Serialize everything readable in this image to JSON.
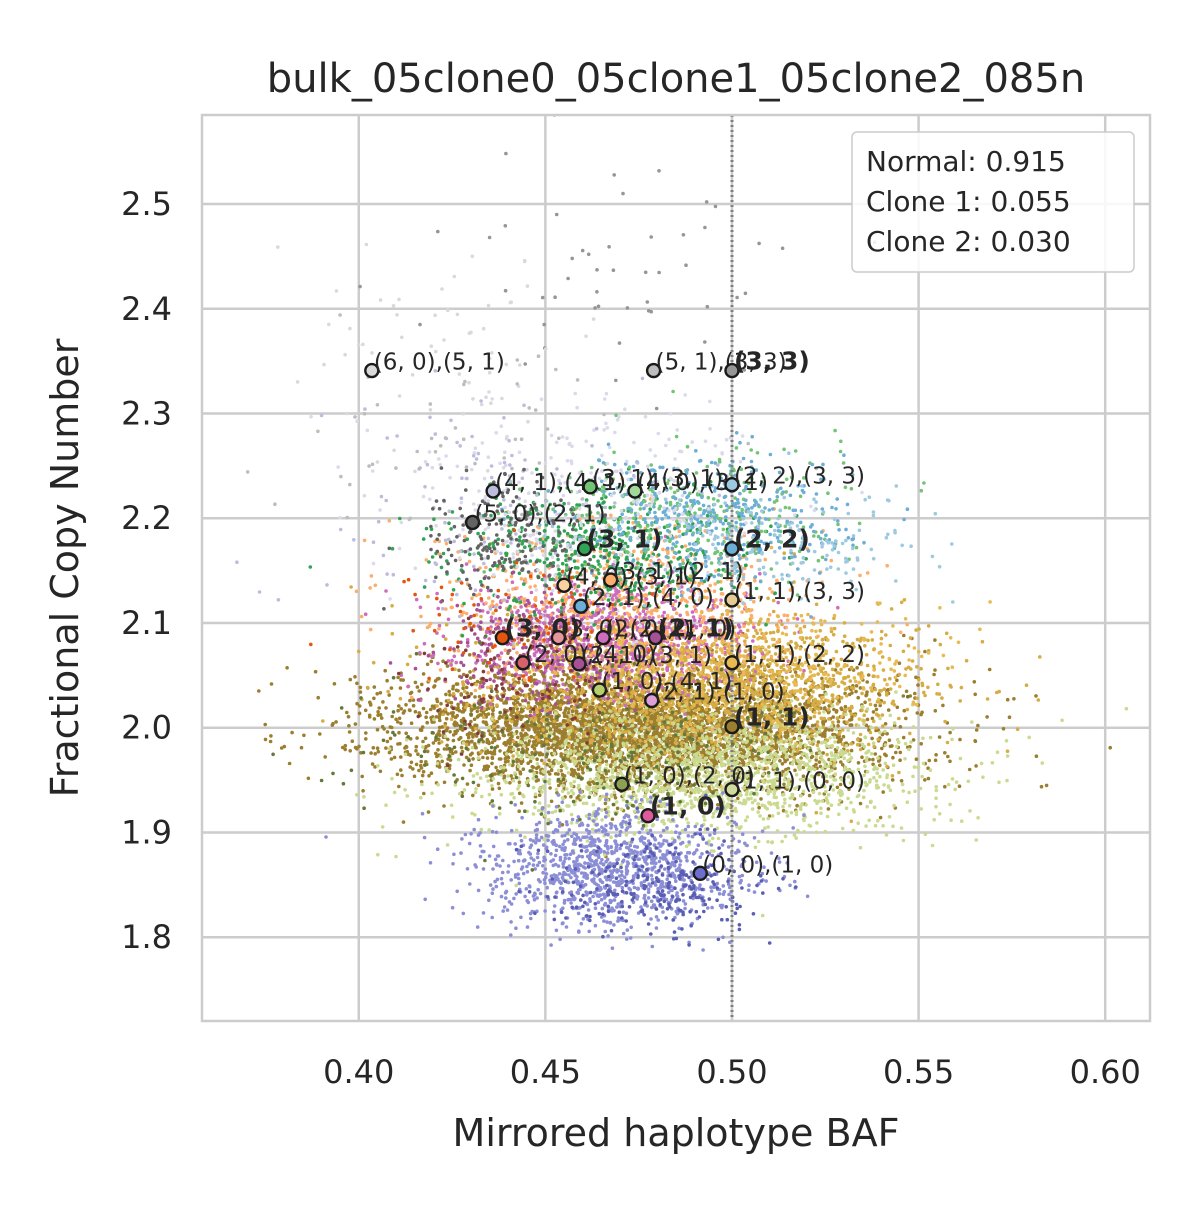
{
  "chart_data": {
    "type": "scatter",
    "title": "bulk_05clone0_05clone1_05clone2_085n",
    "xlabel": "Mirrored haplotype BAF",
    "ylabel": "Fractional Copy Number",
    "xlim": [
      0.358,
      0.612
    ],
    "ylim": [
      1.72,
      2.585
    ],
    "xticks": [
      0.4,
      0.45,
      0.5,
      0.55,
      0.6
    ],
    "xtick_labels": [
      "0.40",
      "0.45",
      "0.50",
      "0.55",
      "0.60"
    ],
    "yticks": [
      1.8,
      1.9,
      2.0,
      2.1,
      2.2,
      2.3,
      2.4,
      2.5
    ],
    "ytick_labels": [
      "1.8",
      "1.9",
      "2.0",
      "2.1",
      "2.2",
      "2.3",
      "2.4",
      "2.5"
    ],
    "grid": true,
    "reference_line": {
      "x": 0.5,
      "style": "dotted",
      "color": "#7f7f7f"
    },
    "legend": {
      "placement": "top-right",
      "entries": [
        "Normal: 0.915",
        "Clone 1: 0.055",
        "Clone 2: 0.030"
      ]
    },
    "clusters": [
      {
        "color": "#9c7f2e",
        "cx": 0.475,
        "cy": 2.0,
        "sx": 0.032,
        "sy": 0.03,
        "n": 4200
      },
      {
        "color": "#d6ad45",
        "cx": 0.49,
        "cy": 2.04,
        "sx": 0.03,
        "sy": 0.035,
        "n": 1700
      },
      {
        "color": "#cadb91",
        "cx": 0.49,
        "cy": 1.955,
        "sx": 0.03,
        "sy": 0.03,
        "n": 1500
      },
      {
        "color": "#8c8fd6",
        "cx": 0.468,
        "cy": 1.865,
        "sx": 0.018,
        "sy": 0.027,
        "n": 1100
      },
      {
        "color": "#5b5fb3",
        "cx": 0.48,
        "cy": 1.85,
        "sx": 0.015,
        "sy": 0.025,
        "n": 250
      },
      {
        "color": "#ce6dbd",
        "cx": 0.465,
        "cy": 2.09,
        "sx": 0.02,
        "sy": 0.028,
        "n": 900
      },
      {
        "color": "#fdae6b",
        "cx": 0.47,
        "cy": 2.12,
        "sx": 0.025,
        "sy": 0.038,
        "n": 700
      },
      {
        "color": "#e7ba52",
        "cx": 0.5,
        "cy": 2.06,
        "sx": 0.025,
        "sy": 0.03,
        "n": 500
      },
      {
        "color": "#31a354",
        "cx": 0.465,
        "cy": 2.17,
        "sx": 0.02,
        "sy": 0.03,
        "n": 500
      },
      {
        "color": "#74c476",
        "cx": 0.49,
        "cy": 2.2,
        "sx": 0.02,
        "sy": 0.03,
        "n": 300
      },
      {
        "color": "#6baed6",
        "cx": 0.495,
        "cy": 2.2,
        "sx": 0.018,
        "sy": 0.03,
        "n": 400
      },
      {
        "color": "#9ecae1",
        "cx": 0.51,
        "cy": 2.18,
        "sx": 0.02,
        "sy": 0.03,
        "n": 200
      },
      {
        "color": "#dadaeb",
        "cx": 0.46,
        "cy": 2.22,
        "sx": 0.025,
        "sy": 0.05,
        "n": 300
      },
      {
        "color": "#bcbddc",
        "cx": 0.44,
        "cy": 2.2,
        "sx": 0.025,
        "sy": 0.05,
        "n": 150
      },
      {
        "color": "#636363",
        "cx": 0.44,
        "cy": 2.18,
        "sx": 0.012,
        "sy": 0.03,
        "n": 200
      },
      {
        "color": "#a55194",
        "cx": 0.445,
        "cy": 2.07,
        "sx": 0.015,
        "sy": 0.03,
        "n": 200
      },
      {
        "color": "#e6550d",
        "cx": 0.44,
        "cy": 2.1,
        "sx": 0.02,
        "sy": 0.03,
        "n": 80
      },
      {
        "color": "#843c39",
        "cx": 0.445,
        "cy": 2.05,
        "sx": 0.015,
        "sy": 0.03,
        "n": 120
      },
      {
        "color": "#637939",
        "cx": 0.46,
        "cy": 1.98,
        "sx": 0.03,
        "sy": 0.04,
        "n": 200
      },
      {
        "color": "#969696",
        "cx": 0.47,
        "cy": 2.45,
        "sx": 0.025,
        "sy": 0.06,
        "n": 50
      },
      {
        "color": "#d9d9d9",
        "cx": 0.42,
        "cy": 2.35,
        "sx": 0.02,
        "sy": 0.05,
        "n": 60
      },
      {
        "color": "#bdbdbd",
        "cx": 0.43,
        "cy": 2.28,
        "sx": 0.025,
        "sy": 0.05,
        "n": 50
      }
    ],
    "annotations": [
      {
        "x": 0.4035,
        "y": 2.341,
        "label": "(6, 0),(5, 1)",
        "fill": "#d9d9d9",
        "bold": false
      },
      {
        "x": 0.479,
        "y": 2.341,
        "label": "(5, 1),(3, 3)",
        "fill": "#bdbdbd",
        "bold": false
      },
      {
        "x": 0.5,
        "y": 2.341,
        "label": "(3, 3)",
        "fill": "#969696",
        "bold": true
      },
      {
        "x": 0.436,
        "y": 2.226,
        "label": "(4, 1),(4, 1)",
        "fill": "#bcbddc",
        "bold": false
      },
      {
        "x": 0.462,
        "y": 2.23,
        "label": "(3, 1),(3, 1)",
        "fill": "#74c476",
        "bold": false
      },
      {
        "x": 0.474,
        "y": 2.226,
        "label": "(4, 0),(3, 1)",
        "fill": "#a1d99b",
        "bold": false
      },
      {
        "x": 0.5,
        "y": 2.232,
        "label": "(2, 2),(3, 3)",
        "fill": "#9ecae1",
        "bold": false
      },
      {
        "x": 0.4305,
        "y": 2.196,
        "label": "(5, 0),(2, 1)",
        "fill": "#636363",
        "bold": false
      },
      {
        "x": 0.4605,
        "y": 2.171,
        "label": "(3, 1)",
        "fill": "#31a354",
        "bold": true
      },
      {
        "x": 0.5,
        "y": 2.171,
        "label": "(2, 2)",
        "fill": "#6baed6",
        "bold": true
      },
      {
        "x": 0.455,
        "y": 2.136,
        "label": "(4, 0),(3, 1)",
        "fill": "#fdd0a2",
        "bold": false
      },
      {
        "x": 0.4675,
        "y": 2.141,
        "label": "(3, 1),(2, 1)",
        "fill": "#fdae6b",
        "bold": false
      },
      {
        "x": 0.4595,
        "y": 2.116,
        "label": "(2, 1),(4, 0)",
        "fill": "#6baed6",
        "bold": false
      },
      {
        "x": 0.5,
        "y": 2.122,
        "label": "(1, 1),(3, 3)",
        "fill": "#e7cb94",
        "bold": false
      },
      {
        "x": 0.4385,
        "y": 2.086,
        "label": "(3, 0)",
        "fill": "#e6550d",
        "bold": true
      },
      {
        "x": 0.4535,
        "y": 2.086,
        "label": "(3, 0),(2, 1)",
        "fill": "#e7969c",
        "bold": false
      },
      {
        "x": 0.4655,
        "y": 2.086,
        "label": "(2, 0),(1, 0)",
        "fill": "#ce6dbd",
        "bold": false
      },
      {
        "x": 0.4795,
        "y": 2.086,
        "label": "(2, 1)",
        "fill": "#a55194",
        "bold": true
      },
      {
        "x": 0.444,
        "y": 2.062,
        "label": "(2, 0),(4, 0)",
        "fill": "#d6616b",
        "bold": false
      },
      {
        "x": 0.459,
        "y": 2.061,
        "label": "(2, 1),(3, 1)",
        "fill": "#a55194",
        "bold": false
      },
      {
        "x": 0.5,
        "y": 2.062,
        "label": "(1, 1),(2, 2)",
        "fill": "#e7ba52",
        "bold": false
      },
      {
        "x": 0.4645,
        "y": 2.036,
        "label": "(1, 0),(4, 1)",
        "fill": "#b5cf6b",
        "bold": false
      },
      {
        "x": 0.4785,
        "y": 2.026,
        "label": "(2, 1),(1, 0)",
        "fill": "#de9ed6",
        "bold": false
      },
      {
        "x": 0.5,
        "y": 2.001,
        "label": "(1, 1)",
        "fill": "#9c7f2e",
        "bold": true
      },
      {
        "x": 0.4705,
        "y": 1.946,
        "label": "(1, 0),(2, 0)",
        "fill": "#8ca252",
        "bold": false
      },
      {
        "x": 0.5,
        "y": 1.941,
        "label": "(1, 1),(0, 0)",
        "fill": "#cedb9c",
        "bold": false
      },
      {
        "x": 0.4775,
        "y": 1.916,
        "label": "(1, 0)",
        "fill": "#de5a9c",
        "bold": true
      },
      {
        "x": 0.4915,
        "y": 1.861,
        "label": "(0, 0),(1, 0)",
        "fill": "#6b6ecf",
        "bold": false
      }
    ]
  }
}
